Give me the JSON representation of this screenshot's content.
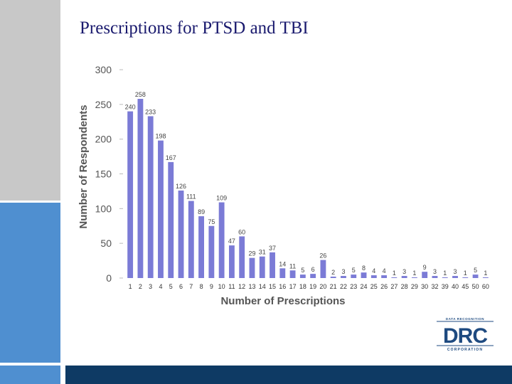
{
  "title": "Prescriptions for PTSD and TBI",
  "colors": {
    "bar": "#7b7bd6",
    "title": "#1a1a6e",
    "navy": "#0e3a64",
    "blue": "#4f8fd0",
    "gray": "#c8c8c8",
    "logo": "#1e4a80"
  },
  "logo": {
    "top_text": "DATA RECOGNITION",
    "main_text": "DRC",
    "bottom_text": "CORPORATION"
  },
  "chart_data": {
    "type": "bar",
    "title": "",
    "xlabel": "Number of Prescriptions",
    "ylabel": "Number of Respondents",
    "ylim": [
      0,
      300
    ],
    "yticks": [
      0,
      50,
      100,
      150,
      200,
      250,
      300
    ],
    "categories": [
      "1",
      "2",
      "3",
      "4",
      "5",
      "6",
      "7",
      "8",
      "9",
      "10",
      "11",
      "12",
      "13",
      "14",
      "15",
      "16",
      "17",
      "18",
      "19",
      "20",
      "21",
      "22",
      "23",
      "24",
      "25",
      "26",
      "27",
      "28",
      "29",
      "30",
      "32",
      "39",
      "40",
      "45",
      "50",
      "60"
    ],
    "values": [
      240,
      258,
      233,
      198,
      167,
      126,
      111,
      89,
      75,
      109,
      47,
      60,
      29,
      31,
      37,
      14,
      11,
      5,
      6,
      26,
      2,
      3,
      5,
      8,
      4,
      4,
      1,
      3,
      1,
      9,
      3,
      1,
      3,
      1,
      5,
      1
    ]
  }
}
